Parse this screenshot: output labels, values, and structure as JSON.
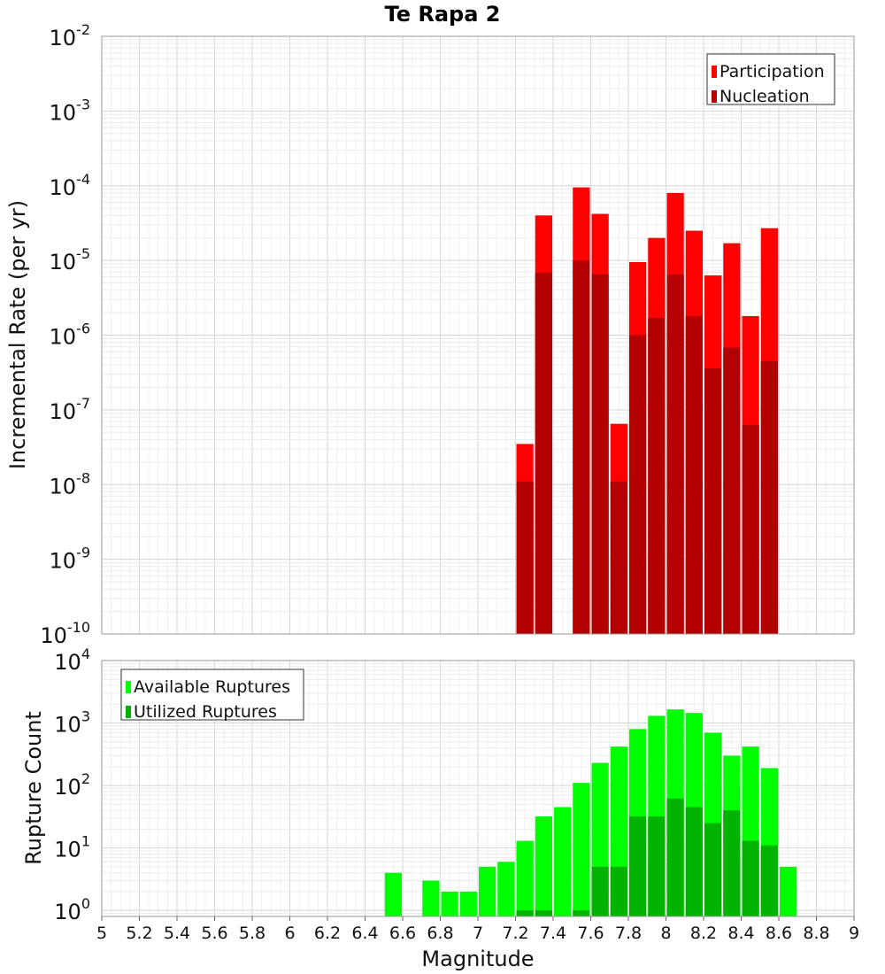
{
  "title": "Te Rapa 2",
  "xlabel": "Magnitude",
  "x_tick_labels": [
    "5",
    "5.2",
    "5.4",
    "5.6",
    "5.8",
    "6",
    "6.2",
    "6.4",
    "6.6",
    "6.8",
    "7",
    "7.2",
    "7.4",
    "7.6",
    "7.8",
    "8",
    "8.2",
    "8.4",
    "8.6",
    "8.8",
    "9"
  ],
  "chart_data": [
    {
      "type": "bar",
      "ylabel": "Incremental Rate (per yr)",
      "yscale": "log",
      "xlim": [
        5,
        9
      ],
      "ylim": [
        1e-10,
        0.01
      ],
      "y_tick_bases": [
        "10",
        "10",
        "10",
        "10",
        "10",
        "10",
        "10",
        "10",
        "10"
      ],
      "y_tick_exponents": [
        "-10",
        "-9",
        "-8",
        "-7",
        "-6",
        "-5",
        "-4",
        "-3",
        "-2"
      ],
      "grid": true,
      "legend_position": "top-right",
      "bin_width": 0.1,
      "x": [
        7.25,
        7.35,
        7.45,
        7.55,
        7.65,
        7.75,
        7.85,
        7.95,
        8.05,
        8.15,
        8.25,
        8.35,
        8.45,
        8.55
      ],
      "series": [
        {
          "name": "Participation",
          "color": "#ff0000",
          "values": [
            3.5e-08,
            4e-05,
            null,
            9.5e-05,
            4.2e-05,
            6.5e-08,
            9.5e-06,
            2e-05,
            8e-05,
            2.5e-05,
            6.3e-06,
            1.7e-05,
            1.8e-06,
            2.7e-05
          ]
        },
        {
          "name": "Nucleation",
          "color": "#b30000",
          "values": [
            1.1e-08,
            6.8e-06,
            null,
            1e-05,
            6.5e-06,
            1.1e-08,
            1e-06,
            1.7e-06,
            6.5e-06,
            1.8e-06,
            3.6e-07,
            6.8e-07,
            6.3e-08,
            4.5e-07
          ]
        }
      ]
    },
    {
      "type": "bar",
      "ylabel": "Rupture Count",
      "yscale": "log",
      "xlim": [
        5,
        9
      ],
      "ylim": [
        0.8,
        10000
      ],
      "y_tick_bases": [
        "10",
        "10",
        "10",
        "10",
        "10"
      ],
      "y_tick_exponents": [
        "0",
        "1",
        "2",
        "3",
        "4"
      ],
      "grid": true,
      "legend_position": "top-left",
      "bin_width": 0.1,
      "x": [
        6.55,
        6.65,
        6.75,
        6.85,
        6.95,
        7.05,
        7.15,
        7.25,
        7.35,
        7.45,
        7.55,
        7.65,
        7.75,
        7.85,
        7.95,
        8.05,
        8.15,
        8.25,
        8.35,
        8.45,
        8.55,
        8.65
      ],
      "series": [
        {
          "name": "Available Ruptures",
          "color": "#00ff00",
          "values": [
            4,
            null,
            3,
            2,
            2,
            5,
            6,
            13,
            32,
            45,
            110,
            230,
            420,
            800,
            1300,
            1650,
            1450,
            700,
            300,
            420,
            190,
            5
          ]
        },
        {
          "name": "Utilized Ruptures",
          "color": "#00b300",
          "values": [
            null,
            null,
            null,
            null,
            null,
            null,
            null,
            1,
            1,
            null,
            1,
            5,
            5,
            32,
            32,
            62,
            45,
            25,
            40,
            13,
            11,
            null
          ]
        }
      ]
    }
  ]
}
